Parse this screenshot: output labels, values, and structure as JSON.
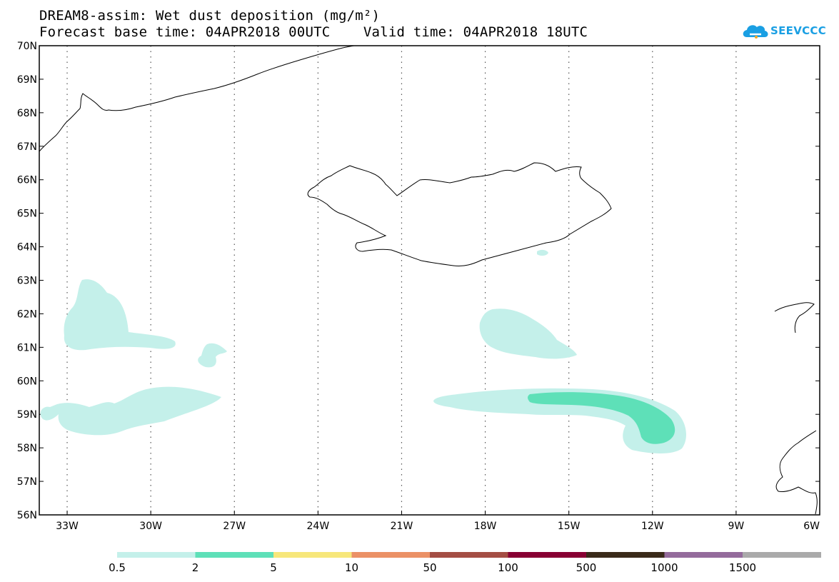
{
  "title": {
    "line1": "DREAM8-assim: Wet dust deposition (mg/m²)",
    "line2": "Forecast base time: 04APR2018 00UTC    Valid time: 04APR2018 18UTC"
  },
  "logo": {
    "text": "SEEVCCC",
    "icon": "cloud-icon",
    "color": "#1a9fe3"
  },
  "map": {
    "lon_range": [
      -34,
      -6
    ],
    "lat_range": [
      56,
      70
    ],
    "lat_ticks": [
      "56N",
      "57N",
      "58N",
      "59N",
      "60N",
      "61N",
      "62N",
      "63N",
      "64N",
      "65N",
      "66N",
      "67N",
      "68N",
      "69N",
      "70N"
    ],
    "lon_ticks": [
      "33W",
      "30W",
      "27W",
      "24W",
      "21W",
      "18W",
      "15W",
      "12W",
      "9W",
      "6W"
    ],
    "gridlines": "dotted"
  },
  "colorbar": {
    "labels": [
      "0.5",
      "2",
      "5",
      "10",
      "50",
      "100",
      "500",
      "1000",
      "1500"
    ],
    "colors": [
      "#c4f0ea",
      "#5ee0b8",
      "#f7e77b",
      "#eb9166",
      "#a44e44",
      "#880033",
      "#3a2a1a",
      "#946b9c",
      "#aaaaaa"
    ]
  }
}
